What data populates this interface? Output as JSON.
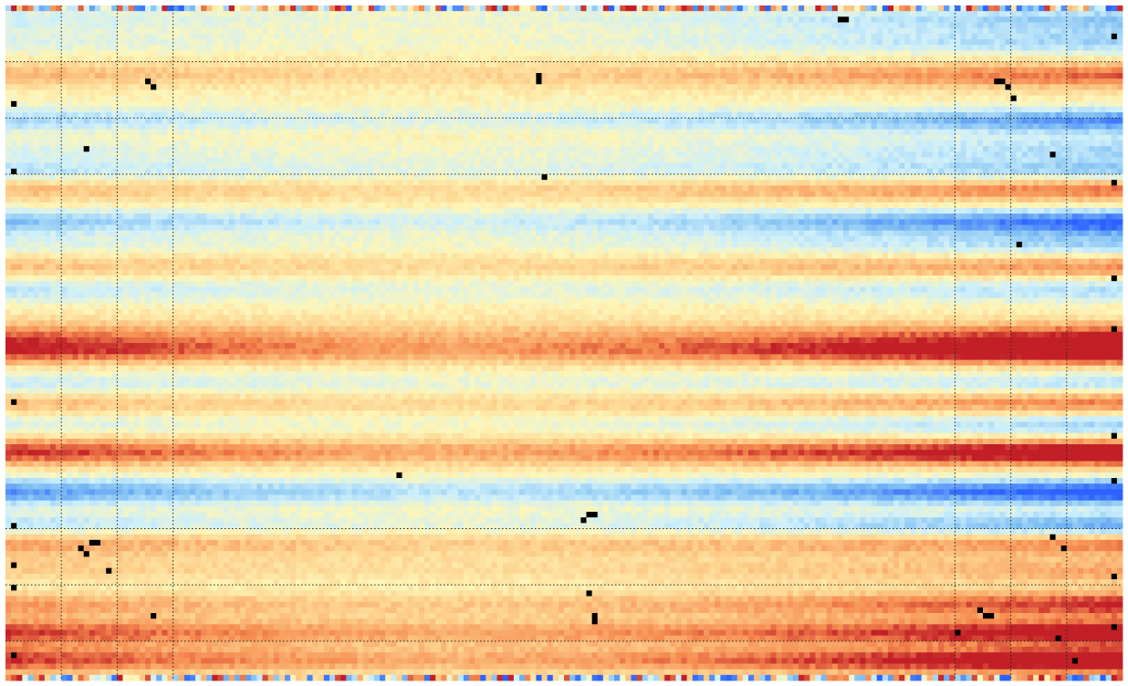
{
  "chart_data": {
    "type": "heatmap",
    "title": "",
    "xlabel": "",
    "ylabel": "",
    "grid": true,
    "legend": "none",
    "dims": {
      "cols": 200,
      "rows": 120
    },
    "colors": {
      "blue_strong": "#2b62ff",
      "blue_mid": "#7fbff3",
      "blue_light": "#cdeffb",
      "neutral": "#fdf6b8",
      "orange_light": "#fdd08c",
      "orange_mid": "#f58a4f",
      "red_strong": "#c21f27",
      "missing": "#000000",
      "grid_line": "#222222",
      "background": "#ffffff"
    },
    "vertical_grid_cols": [
      10,
      20,
      30,
      170,
      180,
      190
    ],
    "horizontal_grid_rows": [
      10,
      20,
      30,
      93,
      103,
      113
    ],
    "bands": [
      {
        "row": 2,
        "sign": -1,
        "amp": 0.5
      },
      {
        "row": 6,
        "sign": -1,
        "amp": 0.45
      },
      {
        "row": 12,
        "sign": 1,
        "amp": 0.55
      },
      {
        "row": 20,
        "sign": -1,
        "amp": 0.75
      },
      {
        "row": 25,
        "sign": -1,
        "amp": 0.4
      },
      {
        "row": 29,
        "sign": -1,
        "amp": 0.55
      },
      {
        "row": 32,
        "sign": 1,
        "amp": 0.6
      },
      {
        "row": 38,
        "sign": -1,
        "amp": 0.9
      },
      {
        "row": 42,
        "sign": -1,
        "amp": 0.45
      },
      {
        "row": 46,
        "sign": 1,
        "amp": 0.45
      },
      {
        "row": 50,
        "sign": -1,
        "amp": 0.4
      },
      {
        "row": 58,
        "sign": 1,
        "amp": 0.55
      },
      {
        "row": 61,
        "sign": 1,
        "amp": 1.0
      },
      {
        "row": 67,
        "sign": -1,
        "amp": 0.4
      },
      {
        "row": 70,
        "sign": 1,
        "amp": 0.55
      },
      {
        "row": 74,
        "sign": -1,
        "amp": 0.45
      },
      {
        "row": 79,
        "sign": 1,
        "amp": 1.0
      },
      {
        "row": 86,
        "sign": -1,
        "amp": 1.0
      },
      {
        "row": 92,
        "sign": -1,
        "amp": 0.7
      },
      {
        "row": 95,
        "sign": 1,
        "amp": 0.55
      },
      {
        "row": 100,
        "sign": 1,
        "amp": 0.35
      },
      {
        "row": 106,
        "sign": 1,
        "amp": 0.7
      },
      {
        "row": 111,
        "sign": 1,
        "amp": 0.9
      },
      {
        "row": 116,
        "sign": 1,
        "amp": 1.0
      }
    ],
    "missing_cells": [
      [
        25,
        13
      ],
      [
        26,
        14
      ],
      [
        95,
        12
      ],
      [
        95,
        13
      ],
      [
        96,
        30
      ],
      [
        177,
        13
      ],
      [
        178,
        13
      ],
      [
        179,
        14
      ],
      [
        180,
        16
      ],
      [
        14,
        25
      ],
      [
        187,
        26
      ],
      [
        181,
        42
      ],
      [
        70,
        83
      ],
      [
        104,
        90
      ],
      [
        105,
        90
      ],
      [
        103,
        91
      ],
      [
        15,
        95
      ],
      [
        13,
        96
      ],
      [
        14,
        97
      ],
      [
        16,
        95
      ],
      [
        18,
        100
      ],
      [
        187,
        94
      ],
      [
        189,
        96
      ],
      [
        104,
        104
      ],
      [
        105,
        108
      ],
      [
        105,
        109
      ],
      [
        26,
        108
      ],
      [
        174,
        107
      ],
      [
        175,
        108
      ],
      [
        176,
        108
      ],
      [
        170,
        111
      ],
      [
        188,
        112
      ],
      [
        191,
        116
      ],
      [
        1,
        17
      ],
      [
        1,
        29
      ],
      [
        1,
        70
      ],
      [
        1,
        92
      ],
      [
        1,
        99
      ],
      [
        1,
        103
      ],
      [
        1,
        115
      ],
      [
        198,
        5
      ],
      [
        198,
        31
      ],
      [
        198,
        48
      ],
      [
        198,
        57
      ],
      [
        198,
        76
      ],
      [
        198,
        84
      ],
      [
        198,
        101
      ],
      [
        198,
        110
      ],
      [
        149,
        2
      ],
      [
        150,
        2
      ]
    ]
  }
}
